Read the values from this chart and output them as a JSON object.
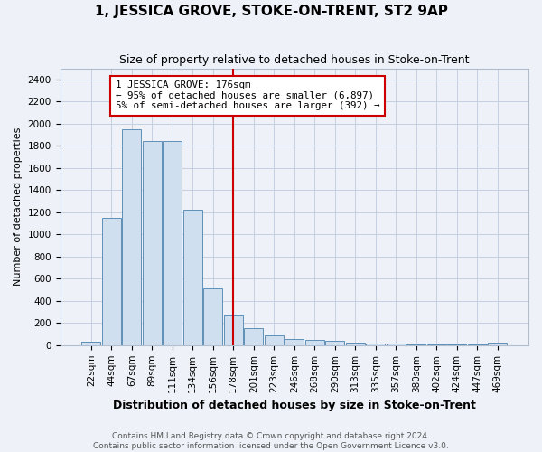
{
  "title": "1, JESSICA GROVE, STOKE-ON-TRENT, ST2 9AP",
  "subtitle": "Size of property relative to detached houses in Stoke-on-Trent",
  "xlabel": "Distribution of detached houses by size in Stoke-on-Trent",
  "ylabel": "Number of detached properties",
  "footer_line1": "Contains HM Land Registry data © Crown copyright and database right 2024.",
  "footer_line2": "Contains public sector information licensed under the Open Government Licence v3.0.",
  "categories": [
    "22sqm",
    "44sqm",
    "67sqm",
    "89sqm",
    "111sqm",
    "134sqm",
    "156sqm",
    "178sqm",
    "201sqm",
    "223sqm",
    "246sqm",
    "268sqm",
    "290sqm",
    "313sqm",
    "335sqm",
    "357sqm",
    "380sqm",
    "402sqm",
    "424sqm",
    "447sqm",
    "469sqm"
  ],
  "values": [
    30,
    1150,
    1950,
    1840,
    1840,
    1220,
    510,
    270,
    155,
    90,
    55,
    45,
    40,
    20,
    15,
    15,
    10,
    10,
    8,
    8,
    20
  ],
  "bar_color": "#d0dff0",
  "bar_edge_color": "#6090b8",
  "grid_color": "#c5cfe0",
  "background_color": "#eef2f8",
  "red_line_x": 7,
  "annotation_line1": "1 JESSICA GROVE: 176sqm",
  "annotation_line2": "← 95% of detached houses are smaller (6,897)",
  "annotation_line3": "5% of semi-detached houses are larger (392) →",
  "ylim": [
    0,
    2500
  ],
  "yticks": [
    0,
    200,
    400,
    600,
    800,
    1000,
    1200,
    1400,
    1600,
    1800,
    2000,
    2200,
    2400
  ],
  "title_fontsize": 11,
  "subtitle_fontsize": 9,
  "xlabel_fontsize": 9,
  "ylabel_fontsize": 8,
  "tick_fontsize": 7.5,
  "footer_fontsize": 6.5
}
